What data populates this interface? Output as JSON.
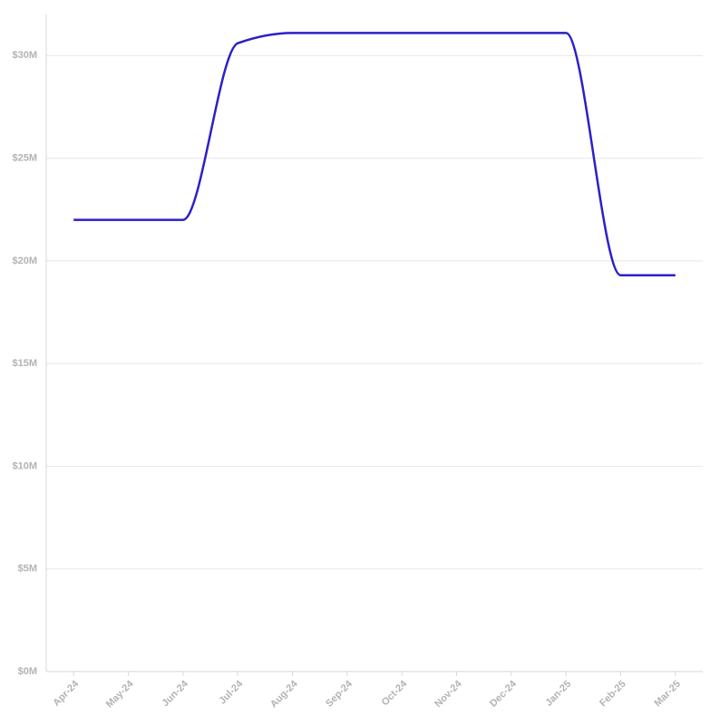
{
  "chart_data": {
    "type": "line",
    "categories": [
      "Apr-24",
      "May-24",
      "Jun-24",
      "Jul-24",
      "Aug-24",
      "Sep-24",
      "Oct-24",
      "Nov-24",
      "Dec-24",
      "Jan-25",
      "Feb-25",
      "Mar-25"
    ],
    "values": [
      22000000,
      22000000,
      22000000,
      30600000,
      31100000,
      31100000,
      31100000,
      31100000,
      31100000,
      31100000,
      19300000,
      19300000
    ],
    "color": "#2b20c8",
    "ylim": [
      0,
      32000000
    ],
    "yticks": [
      {
        "value": 0,
        "label": "$0M"
      },
      {
        "value": 5000000,
        "label": "$5M"
      },
      {
        "value": 10000000,
        "label": "$10M"
      },
      {
        "value": 15000000,
        "label": "$15M"
      },
      {
        "value": 20000000,
        "label": "$20M"
      },
      {
        "value": 25000000,
        "label": "$25M"
      },
      {
        "value": 30000000,
        "label": "$30M"
      }
    ],
    "grid": true
  }
}
